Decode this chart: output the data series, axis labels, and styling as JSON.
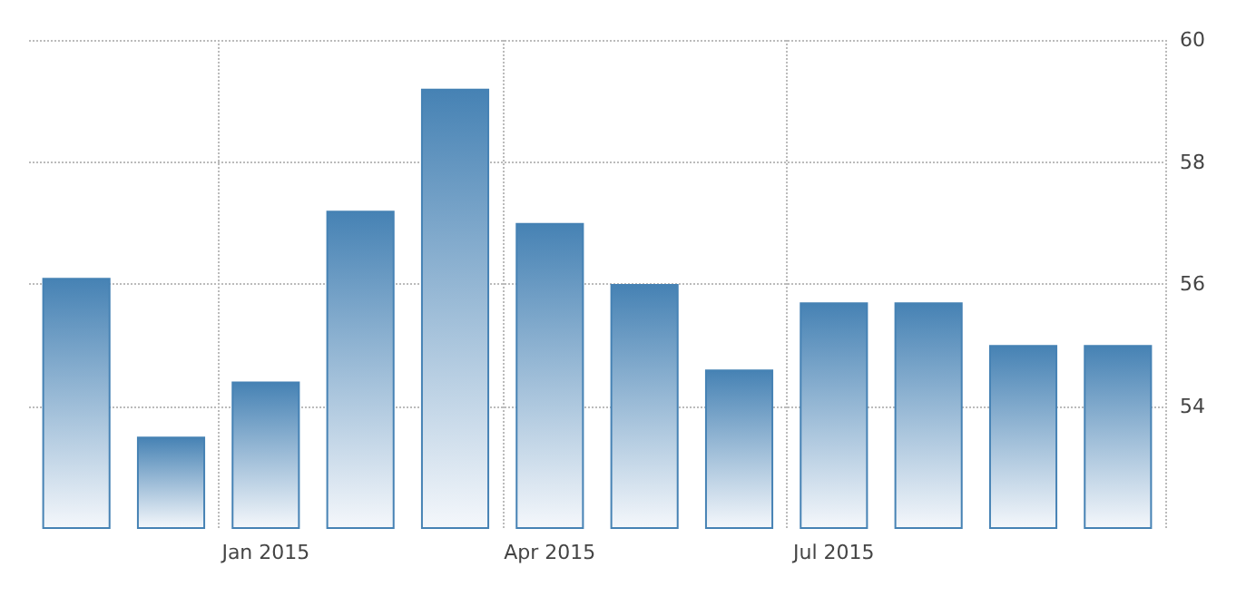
{
  "chart_data": {
    "type": "bar",
    "categories": [
      null,
      null,
      "Jan 2015",
      null,
      null,
      "Apr 2015",
      null,
      null,
      "Jul 2015",
      null,
      null,
      null
    ],
    "values": [
      56.1,
      53.5,
      54.4,
      57.2,
      59.2,
      57.0,
      56.0,
      54.6,
      55.7,
      55.7,
      55.0,
      55.0
    ],
    "color": "#4682b4",
    "ylim": [
      52,
      60
    ],
    "yticks": [
      54,
      56,
      58,
      60
    ],
    "grid": true
  }
}
